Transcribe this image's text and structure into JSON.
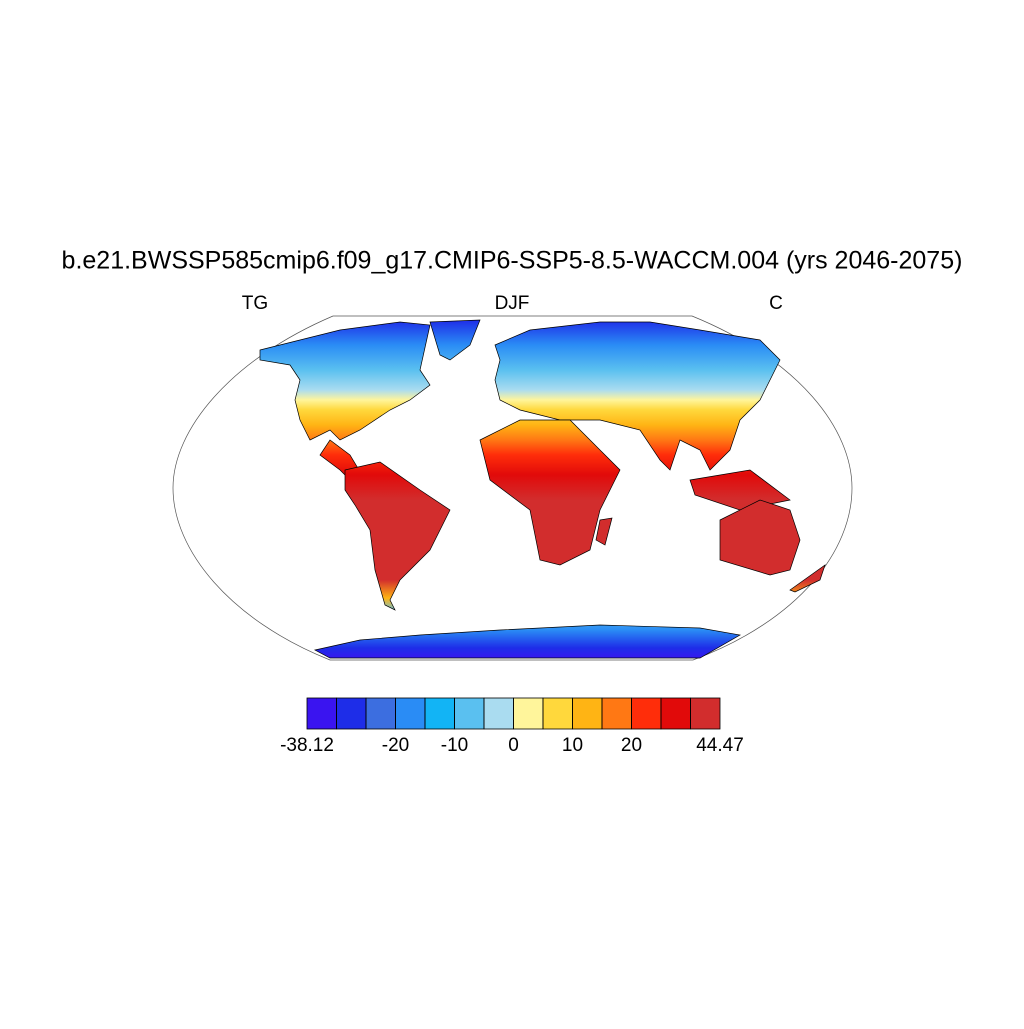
{
  "chart_data": {
    "type": "map",
    "title": "b.e21.BWSSP585cmip6.f09_g17.CMIP6-SSP5-8.5-WACCM.004 (yrs 2046-2075)",
    "left_subtitle": "TG",
    "center_subtitle": "DJF",
    "right_subtitle": "C",
    "colorbar": {
      "colors": [
        "#3a14f0",
        "#1e2de8",
        "#3c6ee0",
        "#2a8cf5",
        "#12b4f5",
        "#5ac0f0",
        "#aadcf0",
        "#fff59b",
        "#ffd83c",
        "#ffb414",
        "#ff7814",
        "#ff2d0a",
        "#e10a0a",
        "#d22d2d"
      ],
      "levels": [
        -30,
        -25,
        -20,
        -15,
        -10,
        -5,
        0,
        5,
        10,
        15,
        20,
        25,
        30
      ],
      "min": -38.12,
      "max": 44.47,
      "ticks": [
        -20,
        -10,
        0,
        10,
        20
      ]
    }
  }
}
